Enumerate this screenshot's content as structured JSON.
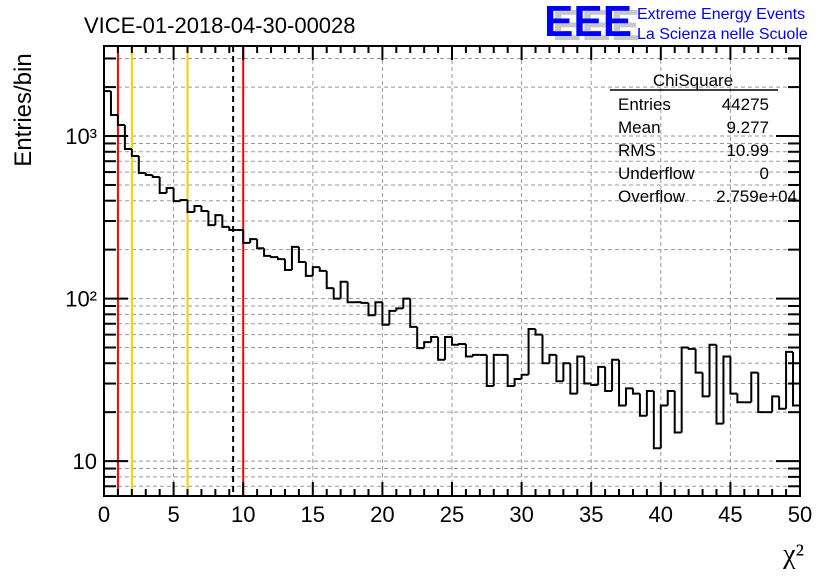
{
  "chart_data": {
    "type": "histogram",
    "title": "VICE-01-2018-04-30-00028",
    "xlabel": "χ²",
    "ylabel": "Entries/bin",
    "xlim": [
      0,
      50
    ],
    "ylim": [
      6.1,
      3580
    ],
    "yscale": "log",
    "grid": true,
    "bin_width": 0.5,
    "x_ticks": [
      "0",
      "5",
      "10",
      "15",
      "20",
      "25",
      "30",
      "35",
      "40",
      "45",
      "50"
    ],
    "y_ticks": [
      {
        "value": 10,
        "label": "10"
      },
      {
        "value": 100,
        "label": "10²"
      },
      {
        "value": 1000,
        "label": "10³"
      }
    ],
    "values": [
      1890,
      1346,
      1169,
      832,
      753,
      592,
      576,
      560,
      446,
      479,
      398,
      404,
      341,
      371,
      346,
      283,
      326,
      276,
      264,
      264,
      220,
      232,
      204,
      183,
      180,
      175,
      150,
      208,
      168,
      138,
      156,
      148,
      116,
      100,
      127,
      95,
      95,
      94,
      79,
      95,
      69,
      84,
      87,
      100,
      67,
      49.6,
      54,
      58,
      42,
      58,
      52,
      52.5,
      44,
      45,
      45,
      29,
      45,
      45,
      29,
      32,
      34,
      65,
      60,
      40,
      45,
      31,
      40,
      26,
      44,
      30,
      29.4,
      38,
      27,
      42,
      22,
      28,
      26,
      19,
      27,
      12,
      22,
      27,
      15,
      50,
      49,
      35,
      25,
      52,
      17,
      44,
      26,
      23,
      23,
      35,
      20,
      20,
      25,
      21,
      47,
      22
    ],
    "vertical_lines": [
      {
        "x": 1,
        "color": "#ff0000",
        "style": "solid"
      },
      {
        "x": 2,
        "color": "#ffcc00",
        "style": "solid"
      },
      {
        "x": 6,
        "color": "#ffcc00",
        "style": "solid"
      },
      {
        "x": 9.277,
        "color": "#000000",
        "style": "dashed"
      },
      {
        "x": 10,
        "color": "#ff0000",
        "style": "solid"
      }
    ],
    "legend": {
      "placement": "top-right",
      "name": "ChiSquare",
      "rows": [
        {
          "label": "Entries",
          "value": "44275"
        },
        {
          "label": "Mean",
          "value": "9.277"
        },
        {
          "label": "RMS",
          "value": "10.99"
        },
        {
          "label": "Underflow",
          "value": "0"
        },
        {
          "label": "Overflow",
          "value": "2.759e+04"
        }
      ]
    }
  },
  "logo": {
    "text": "EEE",
    "line1": "Extreme Energy Events",
    "line2": "La Scienza nelle Scuole",
    "color": "#0000ff"
  }
}
